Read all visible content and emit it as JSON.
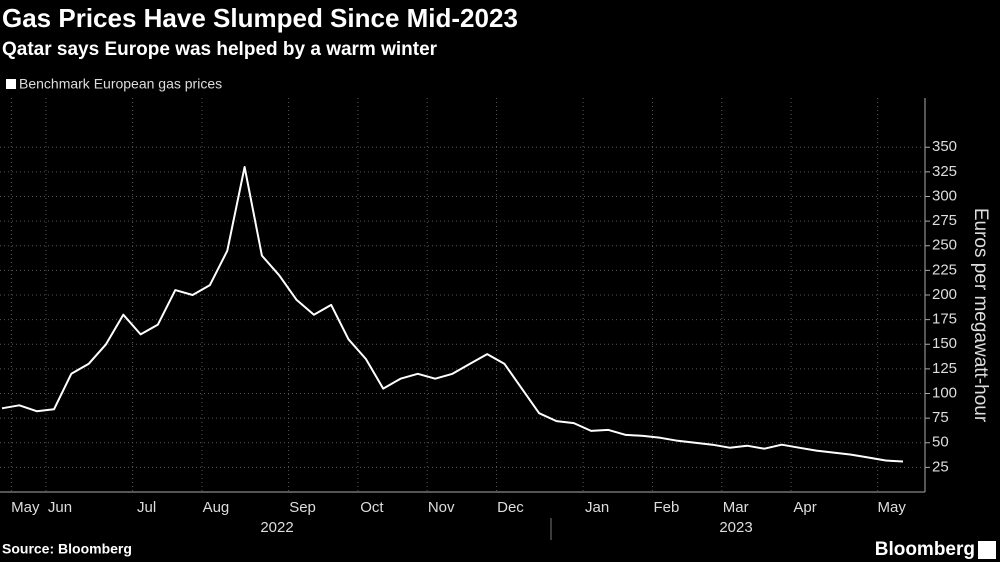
{
  "chart_data": {
    "type": "line",
    "title": "Gas Prices Have Slumped Since Mid-2023",
    "subtitle": "Qatar says Europe was helped by a warm winter",
    "y_label": "Euros per megawatt-hour",
    "source": "Source: Bloomberg",
    "brand": "Bloomberg",
    "year_labels": [
      "2022",
      "2023"
    ],
    "categories": [
      null,
      "May",
      null,
      "Jun",
      null,
      null,
      null,
      null,
      "Jul",
      null,
      null,
      null,
      "Aug",
      null,
      null,
      null,
      null,
      "Sep",
      null,
      null,
      null,
      "Oct",
      null,
      null,
      null,
      "Nov",
      null,
      null,
      null,
      "Dec",
      null,
      null,
      null,
      null,
      "Jan",
      null,
      null,
      null,
      "Feb",
      null,
      null,
      null,
      "Mar",
      null,
      null,
      null,
      "Apr",
      null,
      null,
      null,
      null,
      "May",
      null
    ],
    "series": [
      {
        "name": "Benchmark European gas prices",
        "color": "#ffffff",
        "values": [
          85,
          88,
          82,
          84,
          120,
          130,
          150,
          180,
          160,
          170,
          205,
          200,
          210,
          245,
          330,
          240,
          220,
          195,
          180,
          190,
          155,
          135,
          105,
          115,
          120,
          115,
          120,
          130,
          140,
          130,
          105,
          80,
          72,
          70,
          62,
          63,
          58,
          57,
          55,
          52,
          50,
          48,
          45,
          47,
          44,
          48,
          45,
          42,
          40,
          38,
          35,
          32,
          31
        ]
      }
    ],
    "ylim": [
      0,
      400
    ],
    "yticks": [
      25,
      50,
      75,
      100,
      125,
      150,
      175,
      200,
      225,
      250,
      275,
      300,
      325,
      350
    ],
    "grid": true
  }
}
